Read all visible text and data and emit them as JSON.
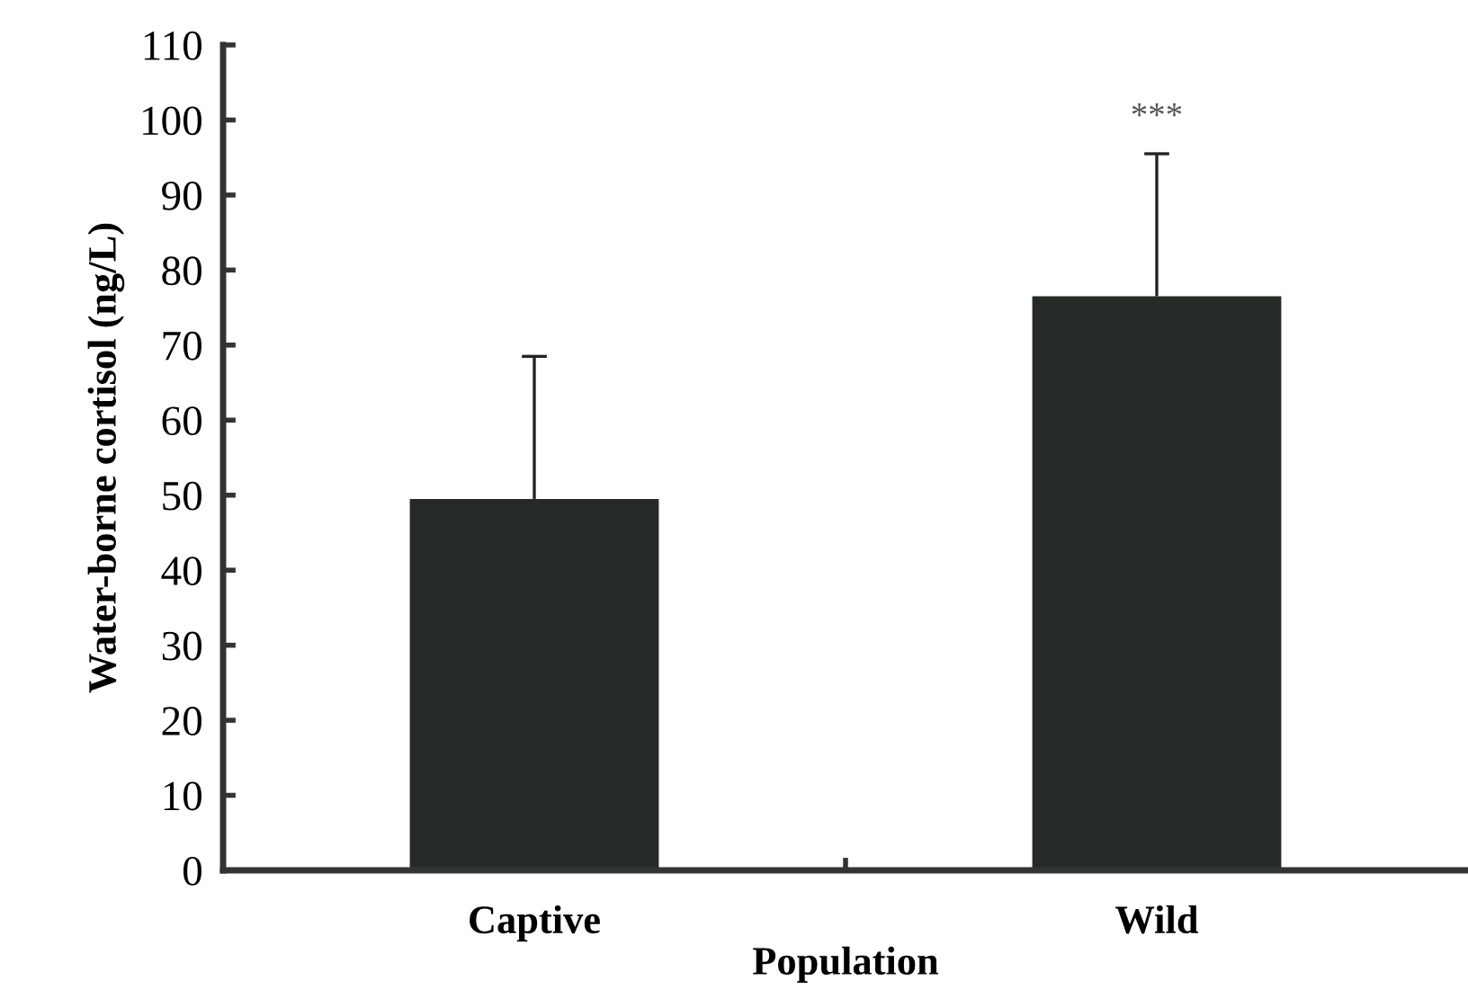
{
  "chart_data": {
    "type": "bar",
    "xlabel": "Population",
    "ylabel": "Water-borne cortisol (ng/L)",
    "categories": [
      "Captive",
      "Wild"
    ],
    "values": [
      49.5,
      76.5
    ],
    "errors": [
      [
        49.5,
        68.5
      ],
      [
        76.5,
        95.5
      ]
    ],
    "color": "#262a27",
    "ylim": [
      0,
      110
    ],
    "yticks": [
      0,
      10,
      20,
      30,
      40,
      50,
      60,
      70,
      80,
      90,
      100,
      110
    ],
    "annotations": [
      "***"
    ],
    "grid": false,
    "legend": false
  }
}
